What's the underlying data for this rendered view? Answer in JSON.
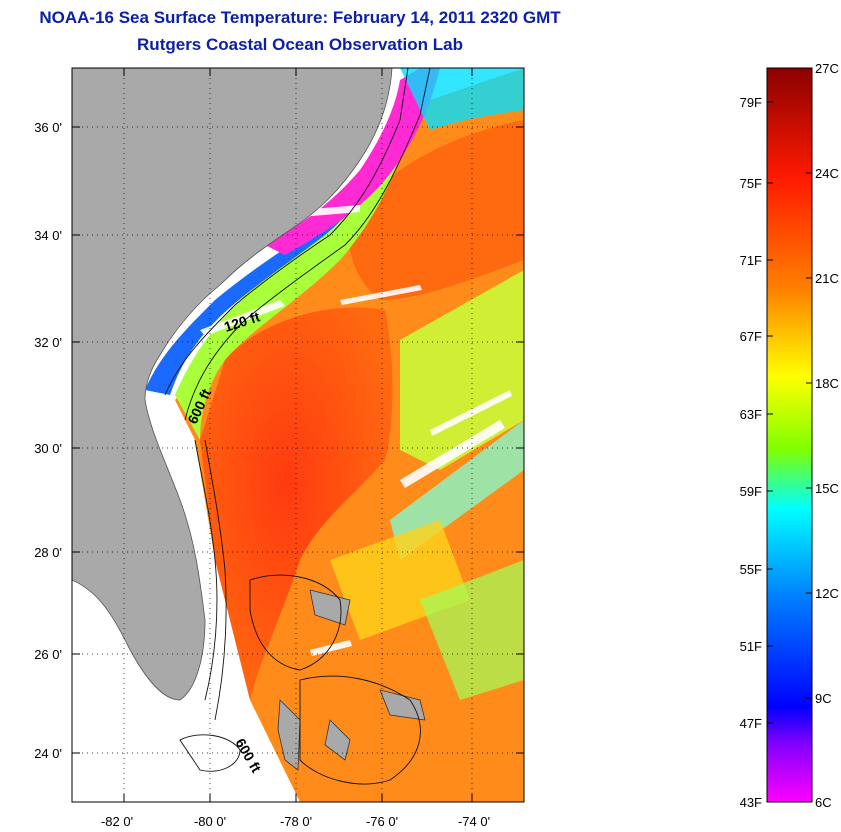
{
  "header": {
    "title": "NOAA-16 Sea Surface Temperature:  February 14, 2011 2320 GMT",
    "subtitle": "Rutgers Coastal Ocean Observation Lab"
  },
  "map": {
    "lat_labels": [
      "36 0'",
      "34 0'",
      "32 0'",
      "30 0'",
      "28 0'",
      "26 0'",
      "24 0'"
    ],
    "lon_labels": [
      "-82 0'",
      "-80 0'",
      "-78 0'",
      "-76 0'",
      "-74 0'"
    ],
    "contour_labels": [
      "120 ft",
      "600 ft",
      "600 ft"
    ],
    "land_color": "#a9a9a9",
    "no_data_color": "#ffffff"
  },
  "colorbar": {
    "fahrenheit_labels": [
      "79F",
      "75F",
      "71F",
      "67F",
      "63F",
      "59F",
      "55F",
      "51F",
      "47F",
      "43F"
    ],
    "celsius_labels": [
      "27C",
      "24C",
      "21C",
      "18C",
      "15C",
      "12C",
      "9C",
      "6C"
    ],
    "colors": [
      "#8b0000",
      "#ff1a00",
      "#ff7f00",
      "#ffff00",
      "#7fff00",
      "#00ffff",
      "#0080ff",
      "#0000ff",
      "#8000ff",
      "#ff00ff"
    ]
  }
}
